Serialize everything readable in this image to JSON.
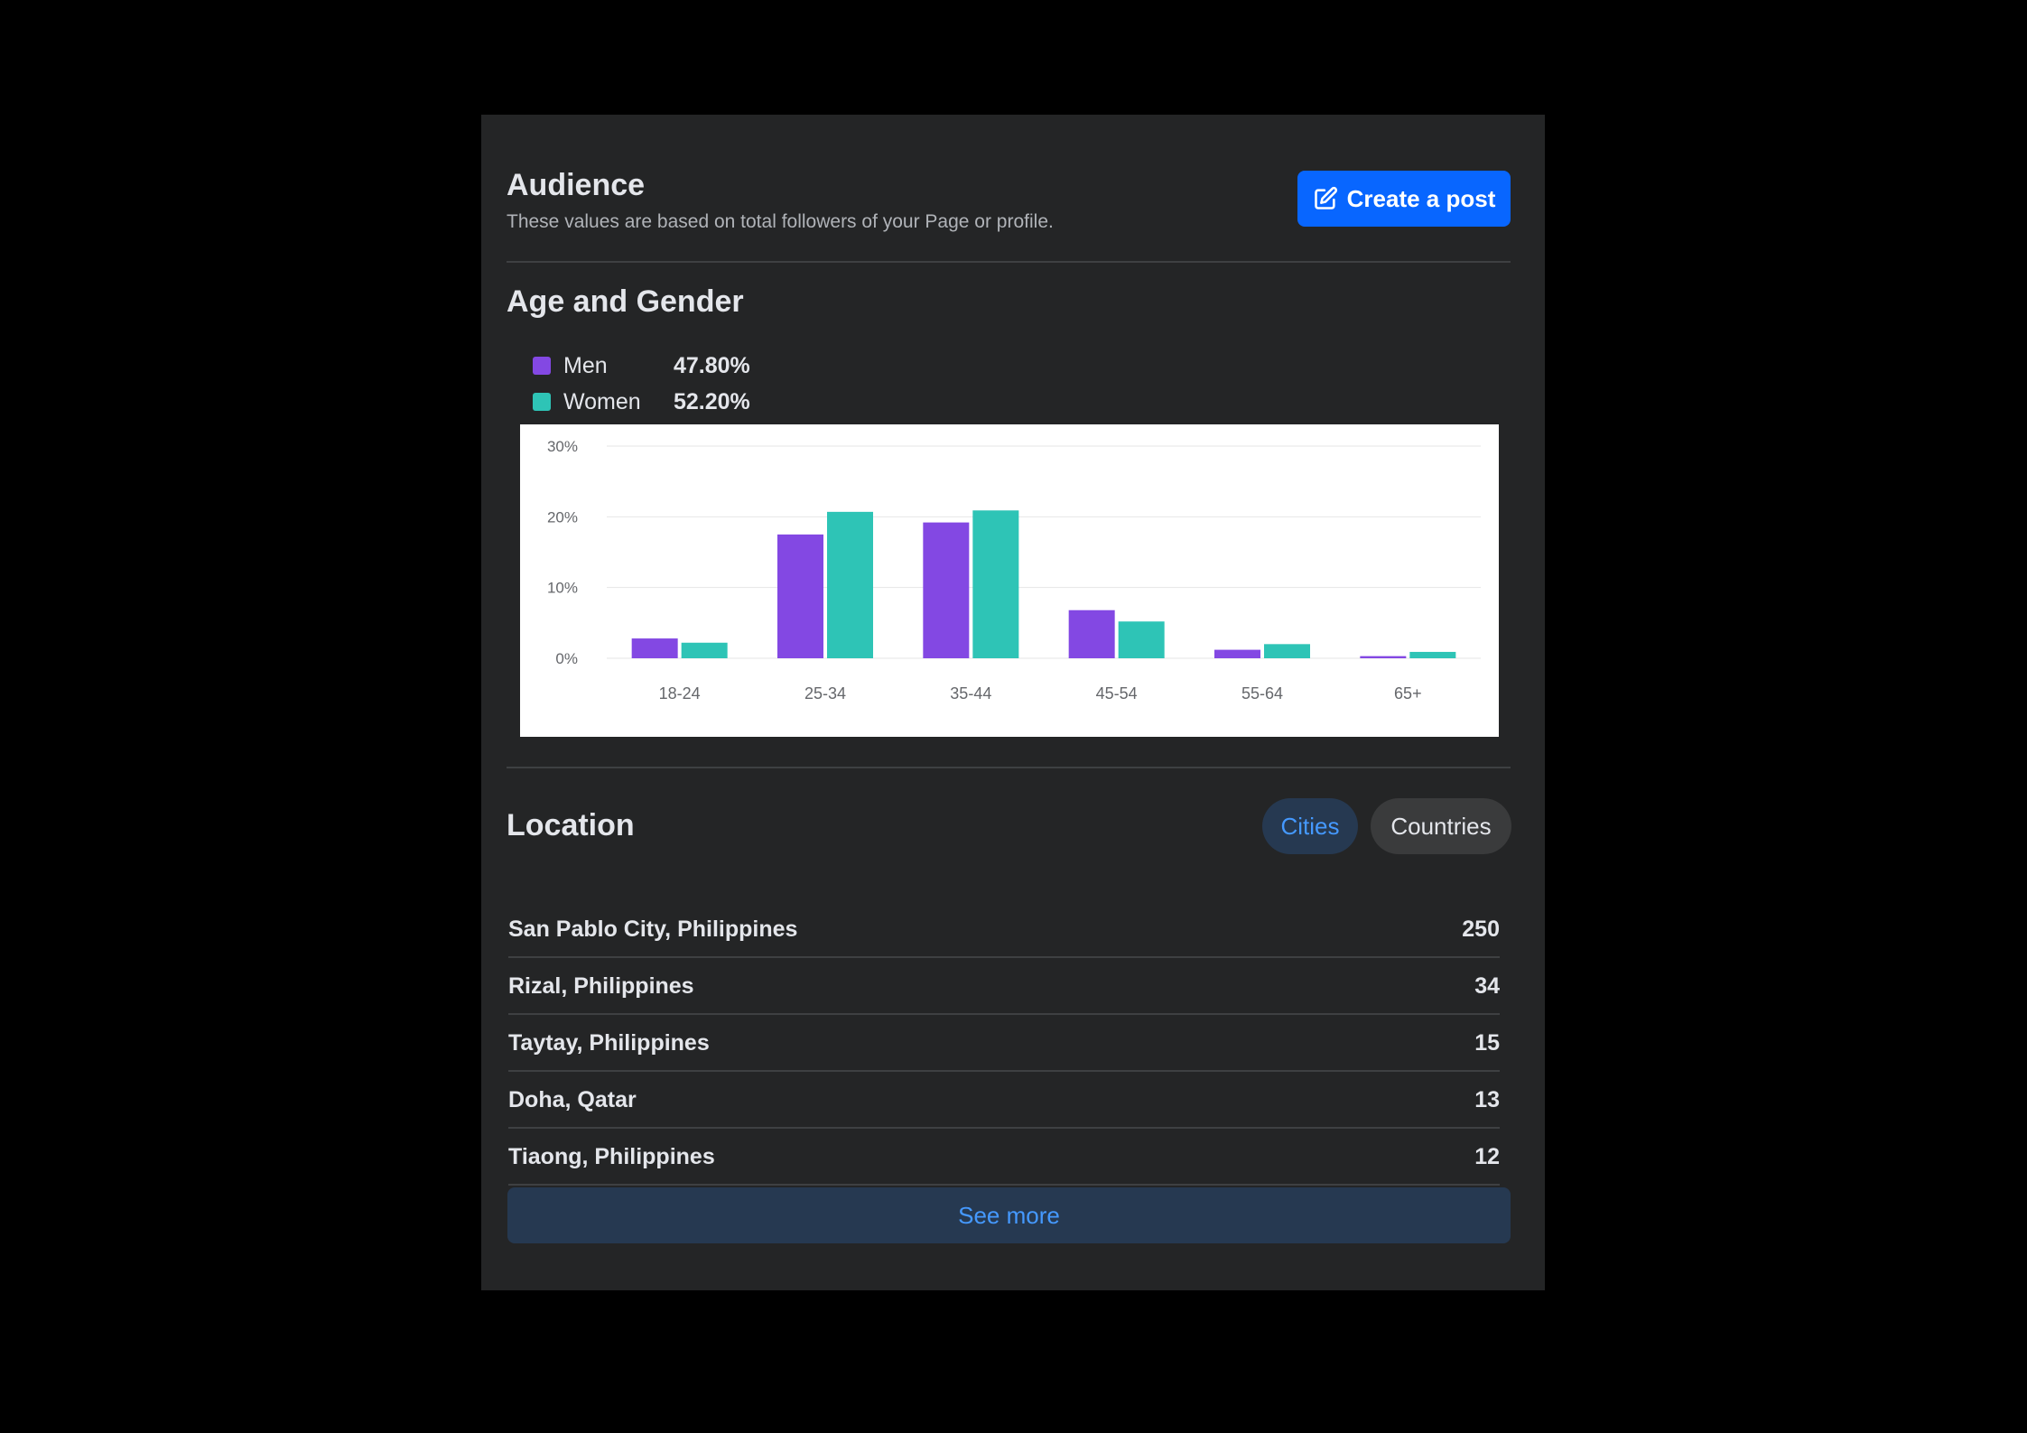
{
  "audience": {
    "title": "Audience",
    "subtitle": "These values are based on total followers of your Page or profile.",
    "create_post_label": "Create a post"
  },
  "age_gender": {
    "title": "Age and Gender",
    "legend": [
      {
        "name": "Men",
        "value": "47.80%",
        "color": "#8348e3"
      },
      {
        "name": "Women",
        "value": "52.20%",
        "color": "#2ec4b6"
      }
    ]
  },
  "chart_data": {
    "type": "bar",
    "categories": [
      "18-24",
      "25-34",
      "35-44",
      "45-54",
      "55-64",
      "65+"
    ],
    "series": [
      {
        "name": "Men",
        "color": "#8348e3",
        "values": [
          2.8,
          17.5,
          19.2,
          6.8,
          1.2,
          0.3
        ]
      },
      {
        "name": "Women",
        "color": "#2ec4b6",
        "values": [
          2.2,
          20.7,
          20.9,
          5.2,
          2.0,
          0.9
        ]
      }
    ],
    "ylim": [
      0,
      30
    ],
    "yticks": [
      "0%",
      "10%",
      "20%",
      "30%"
    ],
    "title": "",
    "xlabel": "",
    "ylabel": "",
    "grid": true
  },
  "location": {
    "title": "Location",
    "tab_cities": "Cities",
    "tab_countries": "Countries",
    "rows": [
      {
        "name": "San Pablo City, Philippines",
        "count": "250"
      },
      {
        "name": "Rizal, Philippines",
        "count": "34"
      },
      {
        "name": "Taytay, Philippines",
        "count": "15"
      },
      {
        "name": "Doha, Qatar",
        "count": "13"
      },
      {
        "name": "Tiaong, Philippines",
        "count": "12"
      }
    ],
    "see_more_label": "See more"
  }
}
